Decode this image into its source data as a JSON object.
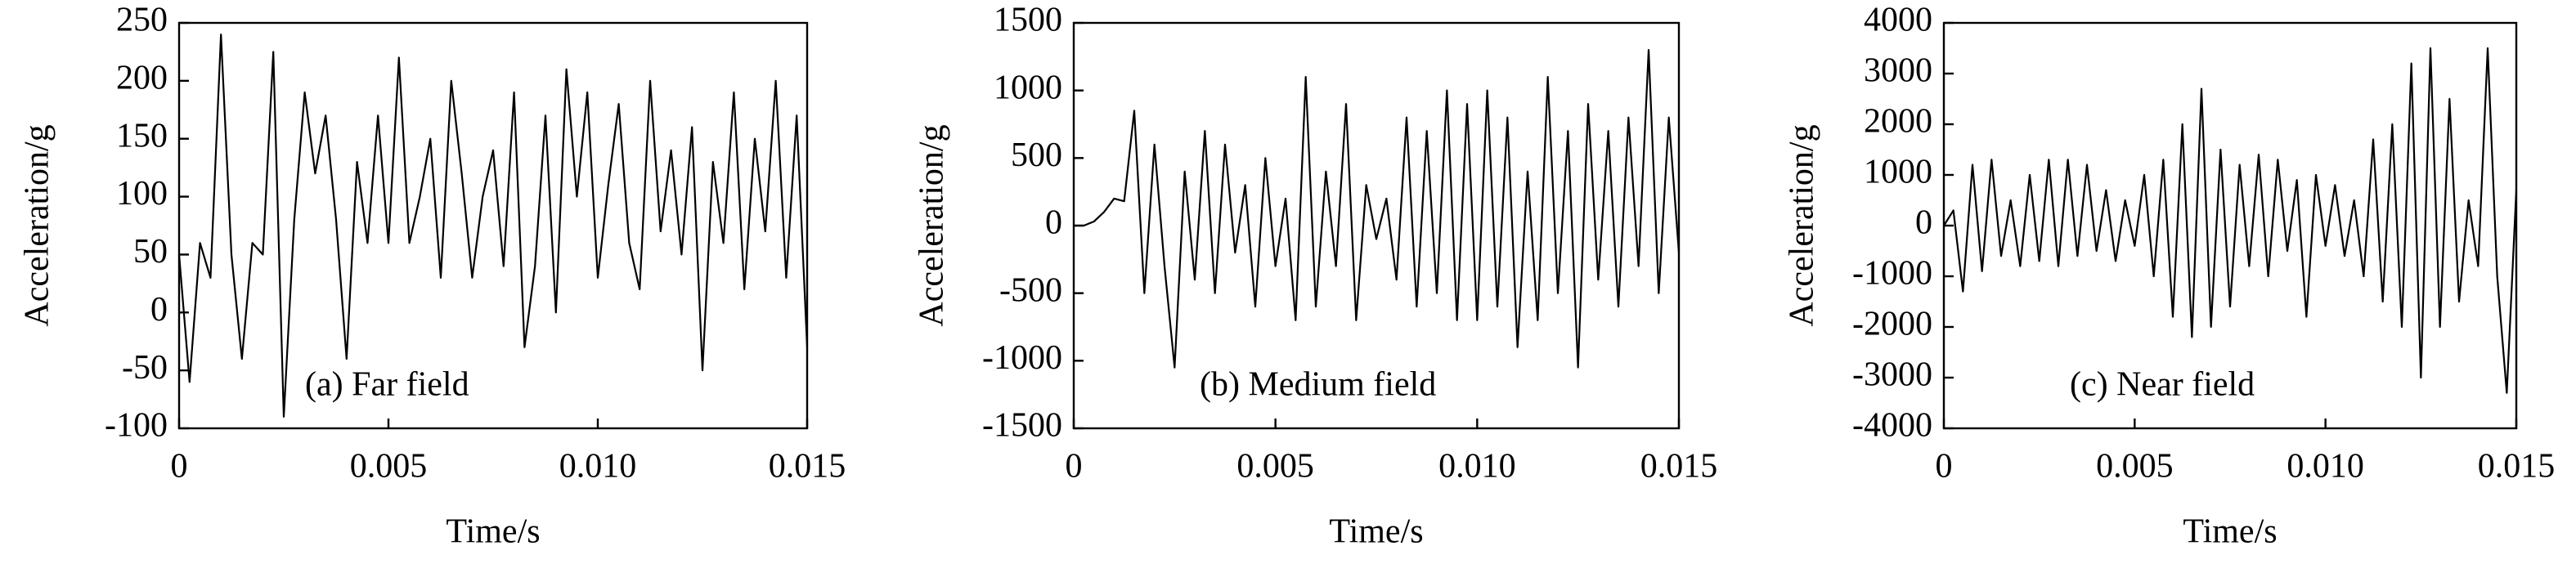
{
  "chart_data": [
    {
      "type": "line",
      "xlabel": "Time/s",
      "ylabel": "Acceleration/g",
      "annotation": "(a) Far field",
      "x": [
        0,
        0.00025,
        0.0005,
        0.00075,
        0.001,
        0.00125,
        0.0015,
        0.00175,
        0.002,
        0.00225,
        0.0025,
        0.00275,
        0.003,
        0.00325,
        0.0035,
        0.00375,
        0.004,
        0.00425,
        0.0045,
        0.00475,
        0.005,
        0.00525,
        0.0055,
        0.00575,
        0.006,
        0.00625,
        0.0065,
        0.00675,
        0.007,
        0.00725,
        0.0075,
        0.00775,
        0.008,
        0.00825,
        0.0085,
        0.00875,
        0.009,
        0.00925,
        0.0095,
        0.00975,
        0.01,
        0.01025,
        0.0105,
        0.01075,
        0.011,
        0.01125,
        0.0115,
        0.01175,
        0.012,
        0.01225,
        0.0125,
        0.01275,
        0.013,
        0.01325,
        0.0135,
        0.01375,
        0.014,
        0.01425,
        0.0145,
        0.01475,
        0.015
      ],
      "values": [
        50,
        -60,
        60,
        30,
        240,
        50,
        -40,
        60,
        50,
        225,
        -90,
        80,
        190,
        120,
        170,
        80,
        -40,
        130,
        60,
        170,
        60,
        220,
        60,
        100,
        150,
        30,
        200,
        120,
        30,
        100,
        140,
        40,
        190,
        -30,
        40,
        170,
        0,
        210,
        100,
        190,
        30,
        110,
        180,
        60,
        20,
        200,
        70,
        140,
        50,
        160,
        -50,
        130,
        60,
        190,
        20,
        150,
        70,
        200,
        30,
        170,
        -30
      ],
      "color": "#000000",
      "xlim": [
        0,
        0.015
      ],
      "xticks": [
        0,
        0.005,
        {
          "value": 0.01,
          "label": "0.010"
        },
        0.015
      ],
      "ylim": [
        -100,
        250
      ],
      "yticks": [
        -100,
        -50,
        0,
        50,
        100,
        150,
        200,
        250
      ]
    },
    {
      "type": "line",
      "xlabel": "Time/s",
      "ylabel": "Acceleration/g",
      "annotation": "(b) Medium field",
      "x": [
        0,
        0.00025,
        0.0005,
        0.00075,
        0.001,
        0.00125,
        0.0015,
        0.00175,
        0.002,
        0.00225,
        0.0025,
        0.00275,
        0.003,
        0.00325,
        0.0035,
        0.00375,
        0.004,
        0.00425,
        0.0045,
        0.00475,
        0.005,
        0.00525,
        0.0055,
        0.00575,
        0.006,
        0.00625,
        0.0065,
        0.00675,
        0.007,
        0.00725,
        0.0075,
        0.00775,
        0.008,
        0.00825,
        0.0085,
        0.00875,
        0.009,
        0.00925,
        0.0095,
        0.00975,
        0.01,
        0.01025,
        0.0105,
        0.01075,
        0.011,
        0.01125,
        0.0115,
        0.01175,
        0.012,
        0.01225,
        0.0125,
        0.01275,
        0.013,
        0.01325,
        0.0135,
        0.01375,
        0.014,
        0.01425,
        0.0145,
        0.01475,
        0.015
      ],
      "values": [
        0,
        0,
        30,
        100,
        200,
        180,
        850,
        -500,
        600,
        -300,
        -1050,
        400,
        -400,
        700,
        -500,
        600,
        -200,
        300,
        -600,
        500,
        -300,
        200,
        -700,
        1100,
        -600,
        400,
        -300,
        900,
        -700,
        300,
        -100,
        200,
        -400,
        800,
        -600,
        700,
        -500,
        1000,
        -700,
        900,
        -700,
        1000,
        -600,
        800,
        -900,
        400,
        -700,
        1100,
        -500,
        700,
        -1050,
        900,
        -400,
        700,
        -600,
        800,
        -300,
        1300,
        -500,
        800,
        -200
      ],
      "color": "#000000",
      "xlim": [
        0,
        0.015
      ],
      "xticks": [
        0,
        0.005,
        {
          "value": 0.01,
          "label": "0.010"
        },
        0.015
      ],
      "ylim": [
        -1500,
        1500
      ],
      "yticks": [
        -1500,
        -1000,
        -500,
        0,
        500,
        1000,
        1500
      ]
    },
    {
      "type": "line",
      "xlabel": "Time/s",
      "ylabel": "Acceleration/g",
      "annotation": "(c) Near field",
      "x": [
        0,
        0.00025,
        0.0005,
        0.00075,
        0.001,
        0.00125,
        0.0015,
        0.00175,
        0.002,
        0.00225,
        0.0025,
        0.00275,
        0.003,
        0.00325,
        0.0035,
        0.00375,
        0.004,
        0.00425,
        0.0045,
        0.00475,
        0.005,
        0.00525,
        0.0055,
        0.00575,
        0.006,
        0.00625,
        0.0065,
        0.00675,
        0.007,
        0.00725,
        0.0075,
        0.00775,
        0.008,
        0.00825,
        0.0085,
        0.00875,
        0.009,
        0.00925,
        0.0095,
        0.00975,
        0.01,
        0.01025,
        0.0105,
        0.01075,
        0.011,
        0.01125,
        0.0115,
        0.01175,
        0.012,
        0.01225,
        0.0125,
        0.01275,
        0.013,
        0.01325,
        0.0135,
        0.01375,
        0.014,
        0.01425,
        0.0145,
        0.01475,
        0.015
      ],
      "values": [
        0,
        300,
        -1300,
        1200,
        -900,
        1300,
        -600,
        500,
        -800,
        1000,
        -700,
        1300,
        -800,
        1300,
        -600,
        1200,
        -500,
        700,
        -700,
        500,
        -400,
        1000,
        -1000,
        1300,
        -1800,
        2000,
        -2200,
        2700,
        -2000,
        1500,
        -1600,
        1200,
        -800,
        1400,
        -1000,
        1300,
        -500,
        900,
        -1800,
        1000,
        -400,
        800,
        -600,
        500,
        -1000,
        1700,
        -1500,
        2000,
        -2000,
        3200,
        -3000,
        3500,
        -2000,
        2500,
        -1500,
        500,
        -800,
        3500,
        -1000,
        -3300,
        700
      ],
      "color": "#000000",
      "xlim": [
        0,
        0.015
      ],
      "xticks": [
        0,
        0.005,
        {
          "value": 0.01,
          "label": "0.010"
        },
        0.015
      ],
      "ylim": [
        -4000,
        4000
      ],
      "yticks": [
        -4000,
        -3000,
        -2000,
        -1000,
        0,
        1000,
        2000,
        3000,
        4000
      ]
    }
  ]
}
